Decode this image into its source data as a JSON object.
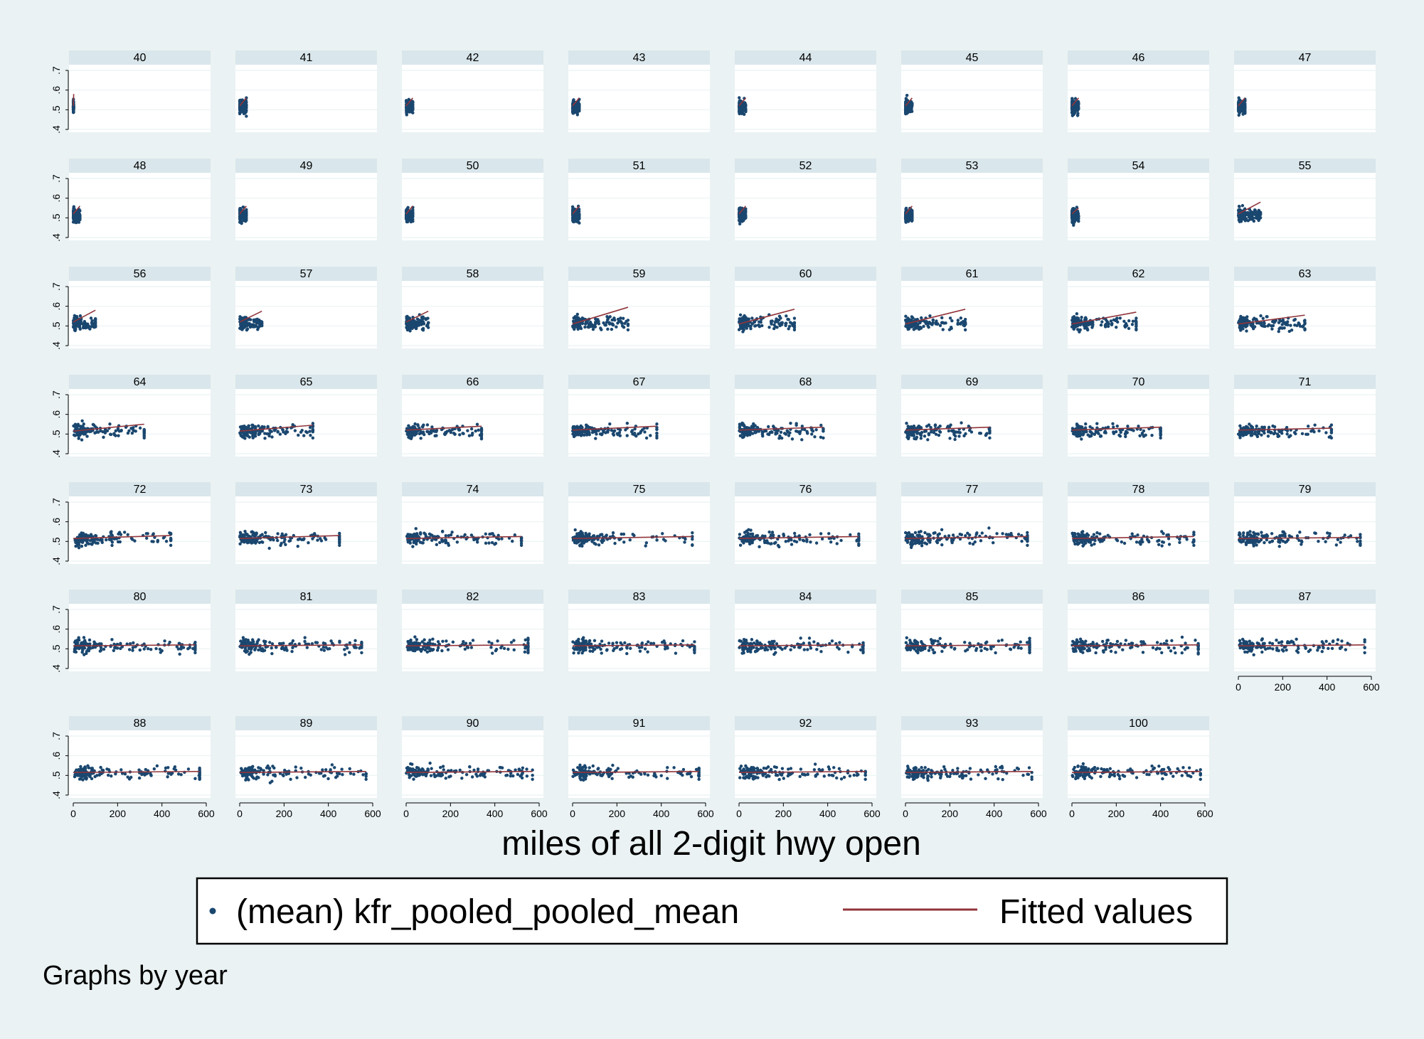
{
  "chart_data": {
    "type": "scatter",
    "layout": "small-multiples",
    "panel_labels": [
      "40",
      "41",
      "42",
      "43",
      "44",
      "45",
      "46",
      "47",
      "48",
      "49",
      "50",
      "51",
      "52",
      "53",
      "54",
      "55",
      "56",
      "57",
      "58",
      "59",
      "60",
      "61",
      "62",
      "63",
      "64",
      "65",
      "66",
      "67",
      "68",
      "69",
      "70",
      "71",
      "72",
      "73",
      "74",
      "75",
      "76",
      "77",
      "78",
      "79",
      "80",
      "81",
      "82",
      "83",
      "84",
      "85",
      "86",
      "87",
      "88",
      "89",
      "90",
      "91",
      "92",
      "93",
      "100"
    ],
    "xlabel": "miles of all 2-digit hwy open",
    "ylabel": "",
    "xlim": [
      0,
      600
    ],
    "ylim": [
      0.4,
      0.7
    ],
    "x_ticks": [
      0,
      200,
      400,
      600
    ],
    "x_tick_labels": [
      "0",
      "200",
      "400",
      "600"
    ],
    "y_ticks": [
      0.4,
      0.5,
      0.6,
      0.7
    ],
    "y_tick_labels": [
      ".4",
      ".5",
      ".6",
      ".7"
    ],
    "grid": true,
    "legend_position": "bottom",
    "series": [
      {
        "name": "(mean) kfr_pooled_pooled_mean",
        "kind": "scatter",
        "color": "#1a476f"
      },
      {
        "name": "Fitted values",
        "kind": "line",
        "color": "#90353b"
      }
    ],
    "max_miles_by_panel": [
      2,
      30,
      30,
      30,
      30,
      30,
      30,
      30,
      30,
      30,
      30,
      30,
      30,
      30,
      30,
      100,
      100,
      100,
      100,
      250,
      250,
      270,
      290,
      300,
      320,
      330,
      340,
      380,
      380,
      380,
      400,
      420,
      440,
      450,
      520,
      540,
      540,
      550,
      550,
      550,
      550,
      550,
      550,
      550,
      560,
      560,
      570,
      570,
      570,
      570,
      570,
      570,
      570,
      570,
      580
    ],
    "fitted_lines": [
      [
        0.52,
        0.58
      ],
      [
        0.52,
        0.56
      ],
      [
        0.52,
        0.56
      ],
      [
        0.52,
        0.56
      ],
      [
        0.52,
        0.56
      ],
      [
        0.52,
        0.56
      ],
      [
        0.52,
        0.56
      ],
      [
        0.52,
        0.56
      ],
      [
        0.52,
        0.56
      ],
      [
        0.52,
        0.56
      ],
      [
        0.52,
        0.56
      ],
      [
        0.52,
        0.56
      ],
      [
        0.52,
        0.56
      ],
      [
        0.52,
        0.56
      ],
      [
        0.52,
        0.55
      ],
      [
        0.52,
        0.58
      ],
      [
        0.52,
        0.58
      ],
      [
        0.52,
        0.575
      ],
      [
        0.52,
        0.575
      ],
      [
        0.51,
        0.595
      ],
      [
        0.51,
        0.585
      ],
      [
        0.51,
        0.585
      ],
      [
        0.51,
        0.57
      ],
      [
        0.51,
        0.555
      ],
      [
        0.515,
        0.55
      ],
      [
        0.515,
        0.545
      ],
      [
        0.52,
        0.54
      ],
      [
        0.52,
        0.54
      ],
      [
        0.52,
        0.535
      ],
      [
        0.52,
        0.535
      ],
      [
        0.52,
        0.535
      ],
      [
        0.52,
        0.53
      ],
      [
        0.515,
        0.53
      ],
      [
        0.515,
        0.53
      ],
      [
        0.515,
        0.525
      ],
      [
        0.515,
        0.525
      ],
      [
        0.515,
        0.525
      ],
      [
        0.515,
        0.525
      ],
      [
        0.515,
        0.525
      ],
      [
        0.515,
        0.52
      ],
      [
        0.515,
        0.52
      ],
      [
        0.515,
        0.52
      ],
      [
        0.515,
        0.52
      ],
      [
        0.515,
        0.52
      ],
      [
        0.515,
        0.52
      ],
      [
        0.515,
        0.52
      ],
      [
        0.515,
        0.52
      ],
      [
        0.515,
        0.52
      ],
      [
        0.515,
        0.52
      ],
      [
        0.515,
        0.52
      ],
      [
        0.515,
        0.52
      ],
      [
        0.515,
        0.52
      ],
      [
        0.515,
        0.52
      ],
      [
        0.515,
        0.52
      ],
      [
        0.515,
        0.52
      ]
    ]
  },
  "note": "Graphs by year"
}
